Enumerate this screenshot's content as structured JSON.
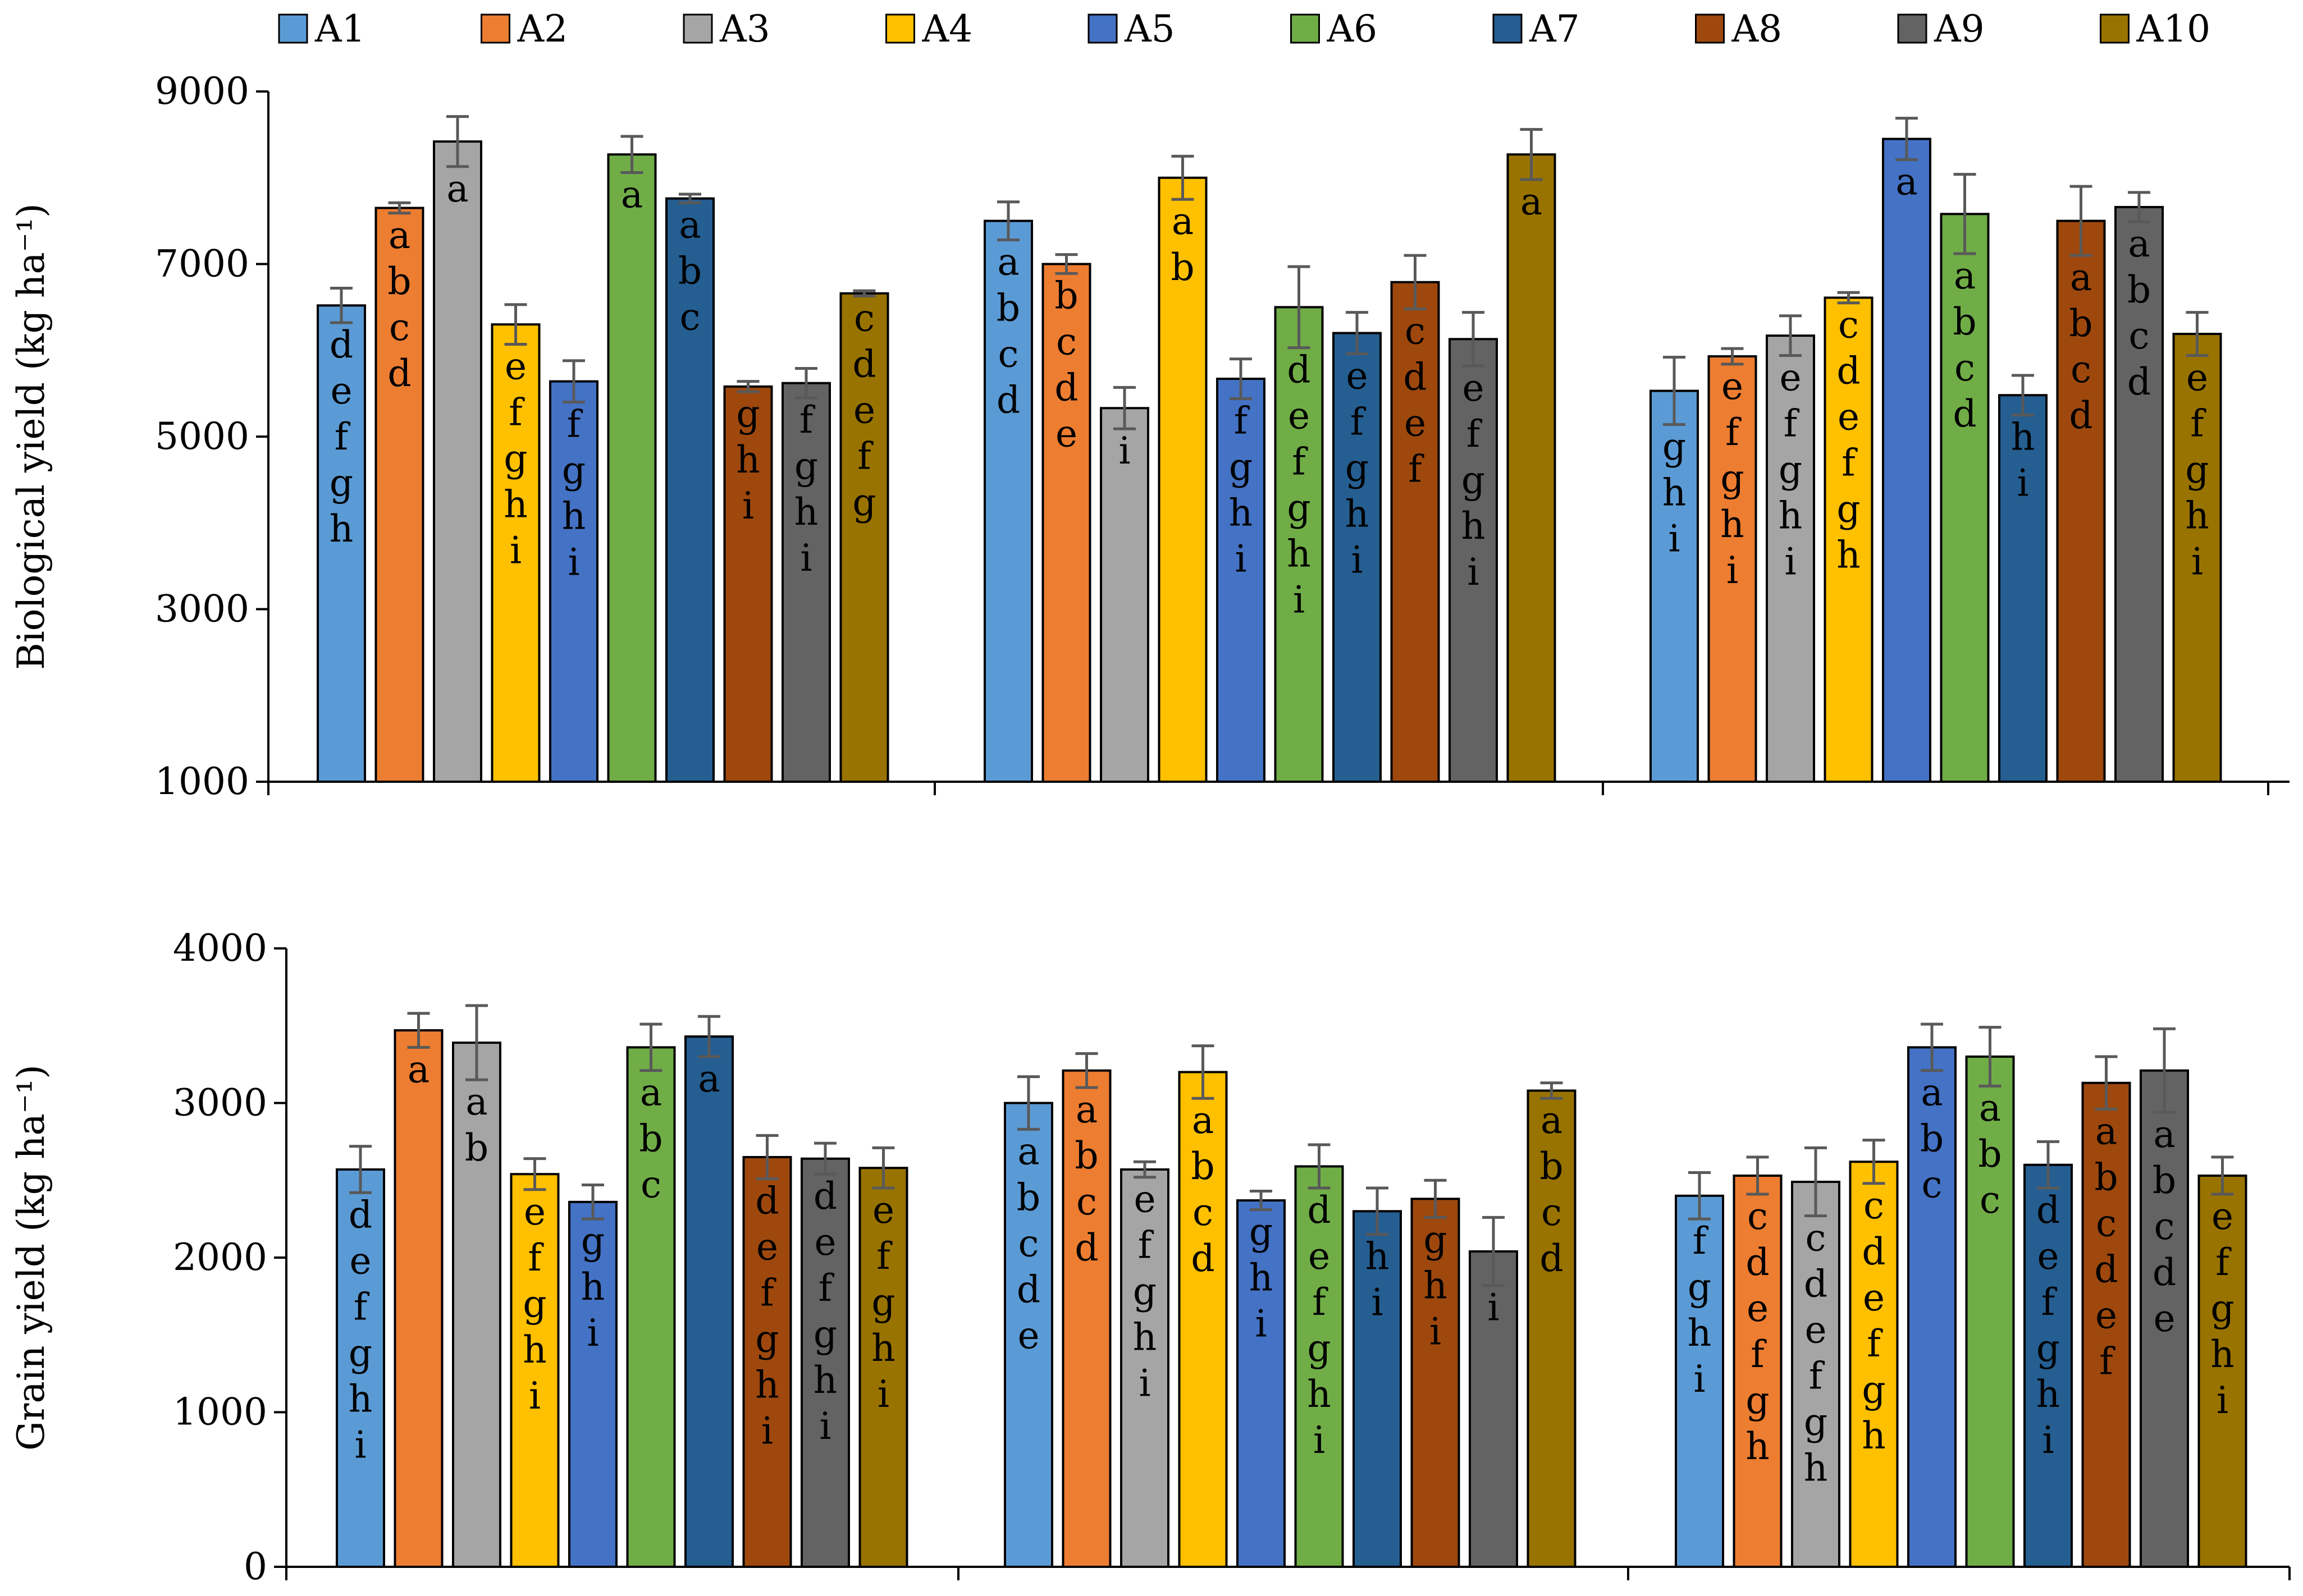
{
  "legend": [
    {
      "name": "A1",
      "color": "#5B9BD5"
    },
    {
      "name": "A2",
      "color": "#ED7D31"
    },
    {
      "name": "A3",
      "color": "#A5A5A5"
    },
    {
      "name": "A4",
      "color": "#FFC000"
    },
    {
      "name": "A5",
      "color": "#4472C4"
    },
    {
      "name": "A6",
      "color": "#70AD47"
    },
    {
      "name": "A7",
      "color": "#255E91"
    },
    {
      "name": "A8",
      "color": "#9E480E"
    },
    {
      "name": "A9",
      "color": "#636363"
    },
    {
      "name": "A10",
      "color": "#997300"
    }
  ],
  "chart_data": [
    {
      "type": "bar",
      "title": "",
      "xlabel": "",
      "ylabel": "Biological yield (kg ha⁻¹)",
      "ylim": [
        1000,
        9000
      ],
      "yticks": [
        1000,
        3000,
        5000,
        7000,
        9000
      ],
      "groups": [
        "",
        "",
        ""
      ],
      "series": [
        {
          "name": "A1",
          "values": [
            6520,
            7500,
            5530
          ],
          "errors": [
            200,
            220,
            390
          ],
          "letters": [
            "defgh",
            "abcd",
            "ghi"
          ]
        },
        {
          "name": "A2",
          "values": [
            7650,
            7000,
            5930
          ],
          "errors": [
            60,
            110,
            90
          ],
          "letters": [
            "abcd",
            "bcde",
            "efghi"
          ]
        },
        {
          "name": "A3",
          "values": [
            8420,
            5330,
            6170
          ],
          "errors": [
            290,
            240,
            230
          ],
          "letters": [
            "a",
            "i",
            "efghi"
          ]
        },
        {
          "name": "A4",
          "values": [
            6300,
            8000,
            6610
          ],
          "errors": [
            230,
            250,
            60
          ],
          "letters": [
            "efghi",
            "ab",
            "cdefgh"
          ]
        },
        {
          "name": "A5",
          "values": [
            5640,
            5670,
            8450
          ],
          "errors": [
            240,
            230,
            240
          ],
          "letters": [
            "fghi",
            "fghi",
            "a"
          ]
        },
        {
          "name": "A6",
          "values": [
            8270,
            6500,
            7580
          ],
          "errors": [
            210,
            470,
            460
          ],
          "letters": [
            "a",
            "defghi",
            "abcd"
          ]
        },
        {
          "name": "A7",
          "values": [
            7760,
            6200,
            5480
          ],
          "errors": [
            50,
            240,
            230
          ],
          "letters": [
            "abc",
            "efghi",
            "hi"
          ]
        },
        {
          "name": "A8",
          "values": [
            5580,
            6790,
            7500
          ],
          "errors": [
            60,
            310,
            400
          ],
          "letters": [
            "ghi",
            "cdef",
            "abcd"
          ]
        },
        {
          "name": "A9",
          "values": [
            5620,
            6130,
            7660
          ],
          "errors": [
            170,
            310,
            170
          ],
          "letters": [
            "fghi",
            "efghi",
            "abcd"
          ]
        },
        {
          "name": "A10",
          "values": [
            6660,
            8270,
            6190
          ],
          "errors": [
            30,
            290,
            250
          ],
          "letters": [
            "cdefg",
            "a",
            "efghi"
          ]
        }
      ]
    },
    {
      "type": "bar",
      "title": "",
      "xlabel": "",
      "ylabel": "Grain yield (kg ha⁻¹)",
      "ylim": [
        0,
        4000
      ],
      "yticks": [
        0,
        1000,
        2000,
        3000,
        4000
      ],
      "groups": [
        "",
        "",
        ""
      ],
      "series": [
        {
          "name": "A1",
          "values": [
            2570,
            3000,
            2400
          ],
          "errors": [
            150,
            170,
            150
          ],
          "letters": [
            "defghi",
            "abcde",
            "fghi"
          ]
        },
        {
          "name": "A2",
          "values": [
            3470,
            3210,
            2530
          ],
          "errors": [
            110,
            110,
            120
          ],
          "letters": [
            "a",
            "abcd",
            "cdefgh"
          ]
        },
        {
          "name": "A3",
          "values": [
            3390,
            2570,
            2490
          ],
          "errors": [
            240,
            50,
            220
          ],
          "letters": [
            "ab",
            "efghi",
            "cdefgh"
          ]
        },
        {
          "name": "A4",
          "values": [
            2540,
            3200,
            2620
          ],
          "errors": [
            100,
            170,
            140
          ],
          "letters": [
            "efghi",
            "abcd",
            "cdefgh"
          ]
        },
        {
          "name": "A5",
          "values": [
            2360,
            2370,
            3360
          ],
          "errors": [
            110,
            60,
            150
          ],
          "letters": [
            "ghi",
            "ghi",
            "abc"
          ]
        },
        {
          "name": "A6",
          "values": [
            3360,
            2590,
            3300
          ],
          "errors": [
            150,
            140,
            190
          ],
          "letters": [
            "abc",
            "defghi",
            "abc"
          ]
        },
        {
          "name": "A7",
          "values": [
            3430,
            2300,
            2600
          ],
          "errors": [
            130,
            150,
            150
          ],
          "letters": [
            "a",
            "hi",
            "defghi"
          ]
        },
        {
          "name": "A8",
          "values": [
            2650,
            2380,
            3130
          ],
          "errors": [
            140,
            120,
            170
          ],
          "letters": [
            "defghi",
            "ghi",
            "abcdef"
          ]
        },
        {
          "name": "A9",
          "values": [
            2640,
            2040,
            3210
          ],
          "errors": [
            100,
            220,
            270
          ],
          "letters": [
            "defghi",
            "i",
            "abcde"
          ]
        },
        {
          "name": "A10",
          "values": [
            2580,
            3080,
            2530
          ],
          "errors": [
            130,
            50,
            120
          ],
          "letters": [
            "efghi",
            "abcd",
            "efghi"
          ]
        }
      ]
    }
  ]
}
